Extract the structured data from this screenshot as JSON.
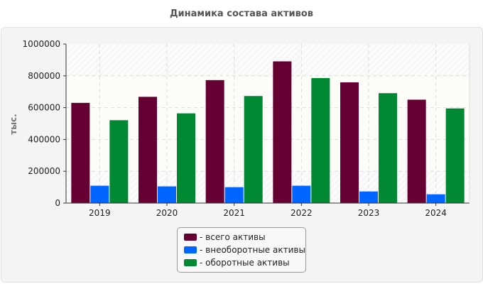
{
  "chart_data": {
    "type": "bar",
    "title": "Динамика состава активов",
    "ylabel": "тыс.",
    "xlabel": "",
    "ylim": [
      0,
      1000000
    ],
    "yticks": [
      0,
      200000,
      400000,
      600000,
      800000,
      1000000
    ],
    "grid": true,
    "legend_position": "bottom",
    "categories": [
      "2019",
      "2020",
      "2021",
      "2022",
      "2023",
      "2024"
    ],
    "series": [
      {
        "name": "- всего активы",
        "color": "#660033",
        "values": [
          630000,
          668000,
          773000,
          891000,
          759000,
          650000
        ]
      },
      {
        "name": "- внеоборотные активы",
        "color": "#0066ff",
        "values": [
          109000,
          105000,
          100000,
          109000,
          73000,
          55000
        ]
      },
      {
        "name": "- оборотные активы",
        "color": "#008833",
        "values": [
          521000,
          564000,
          673000,
          786000,
          691000,
          595000
        ]
      }
    ]
  }
}
